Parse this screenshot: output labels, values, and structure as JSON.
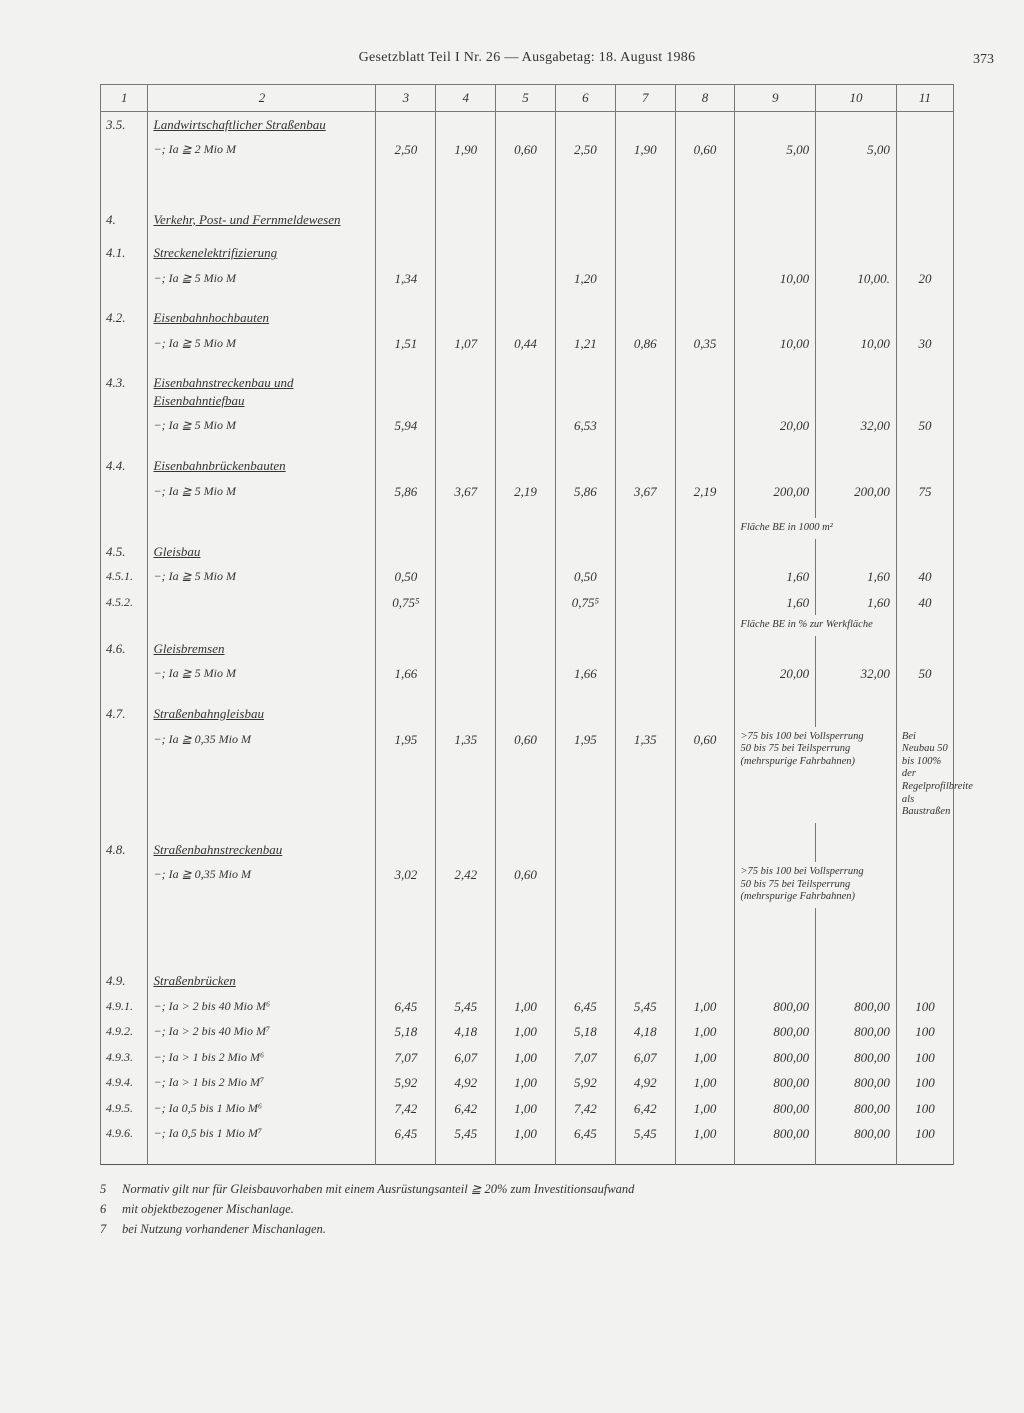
{
  "header": "Gesetzblatt Teil I Nr. 26 — Ausgabetag: 18. August 1986",
  "pageNumber": "373",
  "columnHeaders": [
    "1",
    "2",
    "3",
    "4",
    "5",
    "6",
    "7",
    "8",
    "9",
    "10",
    "11"
  ],
  "rows": [
    {
      "c1": "3.5.",
      "c2u": "Landwirtschaftlicher Straßenbau",
      "c2s": "−; Ia ≧ 2 Mio M",
      "c3": "2,50",
      "c4": "1,90",
      "c5": "0,60",
      "c6": "2,50",
      "c7": "1,90",
      "c8": "0,60",
      "c9": "5,00",
      "c10": "5,00",
      "c11": ""
    },
    {
      "c1": "4.",
      "c2u": "Verkehr, Post- und Fernmeldewesen"
    },
    {
      "c1": "4.1.",
      "c2u": "Streckenelektrifizierung",
      "c2s": "−; Ia ≧ 5 Mio M",
      "c3": "1,34",
      "c4": "",
      "c5": "",
      "c6": "1,20",
      "c7": "",
      "c8": "",
      "c9": "10,00",
      "c10": "10,00.",
      "c11": "20"
    },
    {
      "c1": "4.2.",
      "c2u": "Eisenbahnhochbauten",
      "c2s": "−; Ia ≧ 5 Mio M",
      "c3": "1,51",
      "c4": "1,07",
      "c5": "0,44",
      "c6": "1,21",
      "c7": "0,86",
      "c8": "0,35",
      "c9": "10,00",
      "c10": "10,00",
      "c11": "30"
    },
    {
      "c1": "4.3.",
      "c2u": "Eisenbahnstreckenbau und Eisenbahntiefbau",
      "c2s": "−; Ia ≧ 5 Mio M",
      "c3": "5,94",
      "c4": "",
      "c5": "",
      "c6": "6,53",
      "c7": "",
      "c8": "",
      "c9": "20,00",
      "c10": "32,00",
      "c11": "50"
    },
    {
      "c1": "4.4.",
      "c2u": "Eisenbahnbrückenbauten",
      "c2s": "−; Ia ≧ 5 Mio M",
      "c3": "5,86",
      "c4": "3,67",
      "c5": "2,19",
      "c6": "5,86",
      "c7": "3,67",
      "c8": "2,19",
      "c9": "200,00",
      "c10": "200,00",
      "c11": "75"
    },
    {
      "note910": "Fläche BE in 1000 m²"
    },
    {
      "c1": "4.5.",
      "c2u": "Gleisbau"
    },
    {
      "c1": "4.5.1.",
      "c2s": "−; Ia ≧ 5 Mio M",
      "c3": "0,50",
      "c6": "0,50",
      "c9": "1,60",
      "c10": "1,60",
      "c11": "40"
    },
    {
      "c1": "4.5.2.",
      "c3": "0,75⁵",
      "c6": "0,75⁵",
      "c9": "1,60",
      "c10": "1,60",
      "c11": "40"
    },
    {
      "note910": "Fläche BE in % zur Werkfläche"
    },
    {
      "c1": "4.6.",
      "c2u": "Gleisbremsen",
      "c2s": "−; Ia ≧ 5 Mio M",
      "c3": "1,66",
      "c6": "1,66",
      "c9": "20,00",
      "c10": "32,00",
      "c11": "50"
    },
    {
      "c1": "4.7.",
      "c2u": "Straßenbahngleisbau",
      "c2s": "−; Ia ≧ 0,35 Mio M",
      "c3": "1,95",
      "c4": "1,35",
      "c5": "0,60",
      "c6": "1,95",
      "c7": "1,35",
      "c8": "0,60",
      "c9note": ">75 bis 100 bei Vollsperrung\n50 bis 75 bei Teilsperrung (mehrspurige Fahrbahnen)",
      "c11note": "Bei Neubau 50 bis 100% der Regelprofilbreite als Baustraßen"
    },
    {
      "c1": "4.8.",
      "c2u": "Straßenbahnstreckenbau",
      "c2s": "−; Ia ≧ 0,35 Mio M",
      "c3": "3,02",
      "c4": "2,42",
      "c5": "0,60",
      "c9note": ">75 bis 100 bei Vollsperrung\n50 bis 75 bei Teilsperrung (mehrspurige Fahrbahnen)"
    },
    {
      "c1": "4.9.",
      "c2u": "Straßenbrücken"
    },
    {
      "c1": "4.9.1.",
      "c2s": "−; Ia > 2 bis 40 Mio M⁶",
      "c3": "6,45",
      "c4": "5,45",
      "c5": "1,00",
      "c6": "6,45",
      "c7": "5,45",
      "c8": "1,00",
      "c9": "800,00",
      "c10": "800,00",
      "c11": "100"
    },
    {
      "c1": "4.9.2.",
      "c2s": "−; Ia > 2 bis 40 Mio M⁷",
      "c3": "5,18",
      "c4": "4,18",
      "c5": "1,00",
      "c6": "5,18",
      "c7": "4,18",
      "c8": "1,00",
      "c9": "800,00",
      "c10": "800,00",
      "c11": "100"
    },
    {
      "c1": "4.9.3.",
      "c2s": "−; Ia > 1 bis 2 Mio M⁶",
      "c3": "7,07",
      "c4": "6,07",
      "c5": "1,00",
      "c6": "7,07",
      "c7": "6,07",
      "c8": "1,00",
      "c9": "800,00",
      "c10": "800,00",
      "c11": "100"
    },
    {
      "c1": "4.9.4.",
      "c2s": "−; Ia > 1 bis 2 Mio M⁷",
      "c3": "5,92",
      "c4": "4,92",
      "c5": "1,00",
      "c6": "5,92",
      "c7": "4,92",
      "c8": "1,00",
      "c9": "800,00",
      "c10": "800,00",
      "c11": "100"
    },
    {
      "c1": "4.9.5.",
      "c2s": "−; Ia 0,5 bis 1 Mio M⁶",
      "c3": "7,42",
      "c4": "6,42",
      "c5": "1,00",
      "c6": "7,42",
      "c7": "6,42",
      "c8": "1,00",
      "c9": "800,00",
      "c10": "800,00",
      "c11": "100"
    },
    {
      "c1": "4.9.6.",
      "c2s": "−; Ia 0,5 bis 1 Mio M⁷",
      "c3": "6,45",
      "c4": "5,45",
      "c5": "1,00",
      "c6": "6,45",
      "c7": "5,45",
      "c8": "1,00",
      "c9": "800,00",
      "c10": "800,00",
      "c11": "100"
    }
  ],
  "footnotes": [
    {
      "n": "5",
      "t": "Normativ gilt nur für Gleisbauvorhaben mit einem Ausrüstungsanteil ≧ 20% zum Investitionsaufwand"
    },
    {
      "n": "6",
      "t": "mit objektbezogener Mischanlage."
    },
    {
      "n": "7",
      "t": "bei Nutzung vorhandener Mischanlagen."
    }
  ]
}
